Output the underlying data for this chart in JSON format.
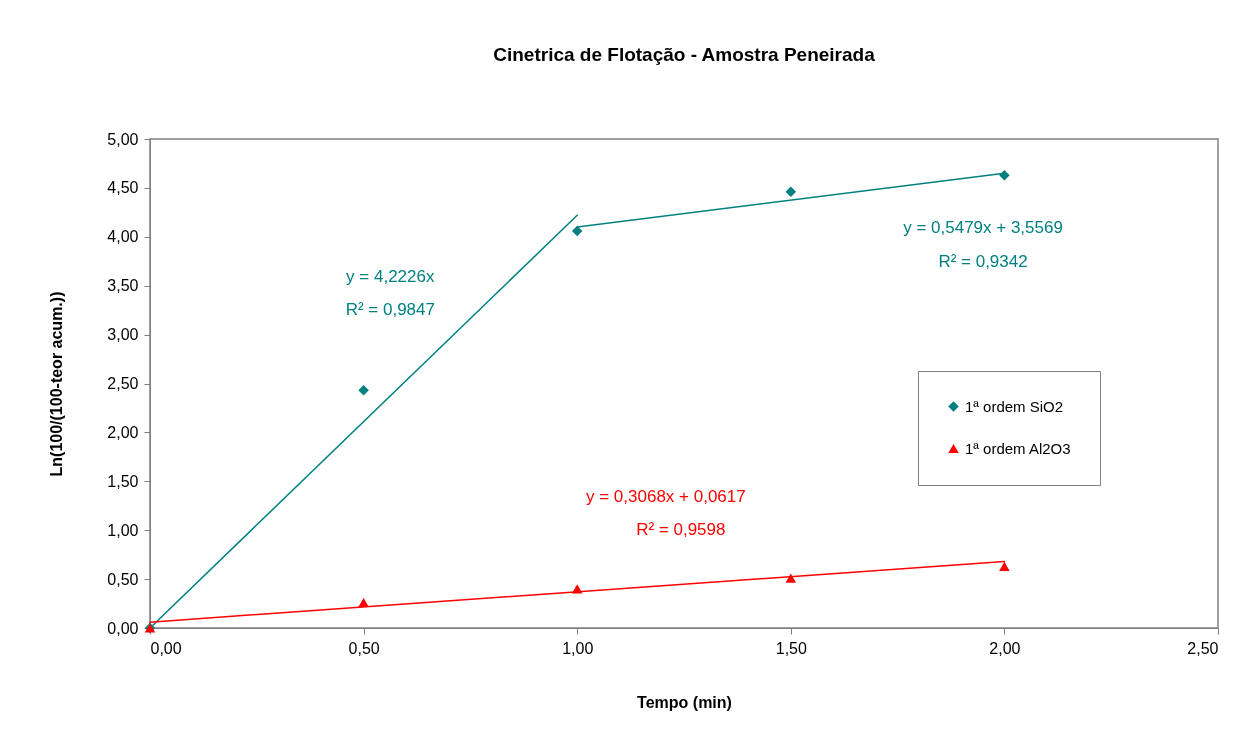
{
  "chart_data": {
    "type": "scatter",
    "title": "Cinetrica de Flotação - Amostra Peneirada",
    "xlabel": "Tempo (min)",
    "ylabel": "Ln(100/(100-teor acum.))",
    "xlim": [
      0,
      2.5
    ],
    "xticks": [
      {
        "value": 0,
        "label": "0,00"
      },
      {
        "value": 0.5,
        "label": "0,50"
      },
      {
        "value": 1,
        "label": "1,00"
      },
      {
        "value": 1.5,
        "label": "1,50"
      },
      {
        "value": 2,
        "label": "2,00"
      },
      {
        "value": 2.5,
        "label": "2,50"
      }
    ],
    "ylim": [
      0,
      5
    ],
    "yticks": [
      {
        "value": 0,
        "label": "0,00"
      },
      {
        "value": 0.5,
        "label": "0,50"
      },
      {
        "value": 1,
        "label": "1,00"
      },
      {
        "value": 1.5,
        "label": "1,50"
      },
      {
        "value": 2,
        "label": "2,00"
      },
      {
        "value": 2.5,
        "label": "2,50"
      },
      {
        "value": 3,
        "label": "3,00"
      },
      {
        "value": 3.5,
        "label": "3,50"
      },
      {
        "value": 4,
        "label": "4,00"
      },
      {
        "value": 4.5,
        "label": "4,50"
      },
      {
        "value": 5,
        "label": "5,00"
      }
    ],
    "legend": "right",
    "series": [
      {
        "name": "1ª ordem SiO2",
        "marker": "diamond",
        "color": "#008080",
        "x": [
          0,
          0.5,
          1,
          1.5,
          2
        ],
        "values": [
          0,
          2.43,
          4.06,
          4.46,
          4.63
        ]
      },
      {
        "name": "1ª ordem Al2O3",
        "marker": "triangle",
        "color": "#ff0000",
        "x": [
          0,
          0.5,
          1,
          1.5,
          2
        ],
        "values": [
          0,
          0.26,
          0.4,
          0.51,
          0.63
        ]
      },
      {
        "type": "line",
        "color": "#008080",
        "x": [
          0,
          1
        ],
        "values": [
          0,
          4.22
        ]
      },
      {
        "type": "line",
        "color": "#008080",
        "x": [
          1,
          2
        ],
        "values": [
          4.1,
          4.65
        ]
      },
      {
        "type": "line",
        "color": "#ff0000",
        "x": [
          0,
          2
        ],
        "values": [
          0.06,
          0.68
        ]
      }
    ],
    "annotations": [
      "y = 4,2226x",
      "R² = 0,9847",
      "y = 0,5479x + 3,5569",
      "R² = 0,9342",
      "y = 0,3068x + 0,0617",
      "R² = 0,9598"
    ]
  }
}
